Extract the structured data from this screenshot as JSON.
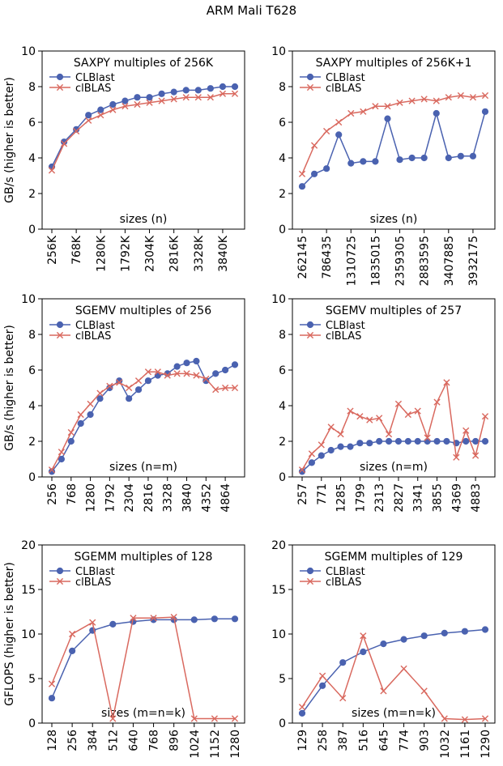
{
  "figure_title": "ARM Mali T628",
  "colors": {
    "clblast": "#4a62b0",
    "clblas": "#d9695f",
    "axis": "#000000"
  },
  "chart_data": [
    {
      "type": "line",
      "title": "SAXPY multiples of 256K",
      "xlabel": "sizes (n)",
      "ylabel": "GB/s (higher is better)",
      "ylim": [
        0,
        10
      ],
      "yticks": [
        "0",
        "2",
        "4",
        "6",
        "8",
        "10"
      ],
      "ytick_values": [
        0,
        2,
        4,
        6,
        8,
        10
      ],
      "xtick_labels": [
        "256K",
        "768K",
        "1280K",
        "1792K",
        "2304K",
        "2816K",
        "3328K",
        "3840K"
      ],
      "xtick_index": [
        0,
        2,
        4,
        6,
        8,
        10,
        12,
        14
      ],
      "legend": "upper-left",
      "series": [
        {
          "name": "CLBlast",
          "marker": "o",
          "values": [
            3.5,
            4.9,
            5.6,
            6.4,
            6.7,
            7.0,
            7.2,
            7.4,
            7.4,
            7.6,
            7.7,
            7.8,
            7.8,
            7.9,
            8.0,
            8.0
          ]
        },
        {
          "name": "clBLAS",
          "marker": "x",
          "values": [
            3.3,
            4.8,
            5.5,
            6.1,
            6.4,
            6.7,
            6.9,
            7.0,
            7.1,
            7.2,
            7.3,
            7.4,
            7.4,
            7.4,
            7.6,
            7.6
          ]
        }
      ]
    },
    {
      "type": "line",
      "title": "SAXPY multiples of 256K+1",
      "xlabel": "sizes (n)",
      "ylabel": "",
      "ylim": [
        0,
        10
      ],
      "yticks": [
        "0",
        "2",
        "4",
        "6",
        "8",
        "10"
      ],
      "ytick_values": [
        0,
        2,
        4,
        6,
        8,
        10
      ],
      "xtick_labels": [
        "262145",
        "786435",
        "1310725",
        "1835015",
        "2359305",
        "2883595",
        "3407885",
        "3932175"
      ],
      "xtick_index": [
        0,
        2,
        4,
        6,
        8,
        10,
        12,
        14
      ],
      "legend": "upper-left",
      "series": [
        {
          "name": "CLBlast",
          "marker": "o",
          "values": [
            2.4,
            3.1,
            3.4,
            5.3,
            3.7,
            3.8,
            3.8,
            6.2,
            3.9,
            4.0,
            4.0,
            6.5,
            4.0,
            4.1,
            4.1,
            6.6
          ]
        },
        {
          "name": "clBLAS",
          "marker": "x",
          "values": [
            3.1,
            4.7,
            5.5,
            6.0,
            6.5,
            6.6,
            6.9,
            6.9,
            7.1,
            7.2,
            7.3,
            7.2,
            7.4,
            7.5,
            7.4,
            7.5
          ]
        }
      ]
    },
    {
      "type": "line",
      "title": "SGEMV multiples of 256",
      "xlabel": "sizes (n=m)",
      "ylabel": "GB/s (higher is better)",
      "ylim": [
        0,
        10
      ],
      "yticks": [
        "0",
        "2",
        "4",
        "6",
        "8",
        "10"
      ],
      "ytick_values": [
        0,
        2,
        4,
        6,
        8,
        10
      ],
      "xtick_labels": [
        "256",
        "768",
        "1280",
        "1792",
        "2304",
        "2816",
        "3328",
        "3840",
        "4352",
        "4864"
      ],
      "xtick_index": [
        0,
        2,
        4,
        6,
        8,
        10,
        12,
        14,
        16,
        18
      ],
      "legend": "upper-left",
      "series": [
        {
          "name": "CLBlast",
          "marker": "o",
          "values": [
            0.3,
            1.0,
            2.0,
            3.0,
            3.5,
            4.4,
            5.0,
            5.4,
            4.4,
            4.9,
            5.4,
            5.7,
            5.8,
            6.2,
            6.4,
            6.5,
            5.4,
            5.8,
            6.0,
            6.3
          ]
        },
        {
          "name": "clBLAS",
          "marker": "x",
          "values": [
            0.4,
            1.4,
            2.5,
            3.5,
            4.1,
            4.7,
            5.1,
            5.3,
            5.0,
            5.4,
            5.9,
            5.9,
            5.7,
            5.8,
            5.8,
            5.7,
            5.5,
            4.9,
            5.0,
            5.0
          ]
        }
      ]
    },
    {
      "type": "line",
      "title": "SGEMV multiples of 257",
      "xlabel": "sizes (n=m)",
      "ylabel": "",
      "ylim": [
        0,
        10
      ],
      "yticks": [
        "0",
        "2",
        "4",
        "6",
        "8",
        "10"
      ],
      "ytick_values": [
        0,
        2,
        4,
        6,
        8,
        10
      ],
      "xtick_labels": [
        "257",
        "771",
        "1285",
        "1799",
        "2313",
        "2827",
        "3341",
        "3855",
        "4369",
        "4883"
      ],
      "xtick_index": [
        0,
        2,
        4,
        6,
        8,
        10,
        12,
        14,
        16,
        18
      ],
      "legend": "upper-left",
      "series": [
        {
          "name": "CLBlast",
          "marker": "o",
          "values": [
            0.3,
            0.8,
            1.2,
            1.5,
            1.7,
            1.7,
            1.9,
            1.9,
            2.0,
            2.0,
            2.0,
            2.0,
            2.0,
            2.0,
            2.0,
            2.0,
            1.9,
            2.0,
            2.0,
            2.0
          ]
        },
        {
          "name": "clBLAS",
          "marker": "x",
          "values": [
            0.4,
            1.3,
            1.8,
            2.8,
            2.4,
            3.7,
            3.4,
            3.2,
            3.3,
            2.4,
            4.1,
            3.5,
            3.7,
            2.2,
            4.2,
            5.3,
            1.1,
            2.6,
            1.2,
            3.4
          ]
        }
      ]
    },
    {
      "type": "line",
      "title": "SGEMM multiples of 128",
      "xlabel": "sizes (m=n=k)",
      "ylabel": "GFLOPS (higher is better)",
      "ylim": [
        0,
        20
      ],
      "yticks": [
        "0",
        "5",
        "10",
        "15",
        "20"
      ],
      "ytick_values": [
        0,
        5,
        10,
        15,
        20
      ],
      "xtick_labels": [
        "128",
        "256",
        "384",
        "512",
        "640",
        "768",
        "896",
        "1024",
        "1152",
        "1280"
      ],
      "xtick_index": [
        0,
        1,
        2,
        3,
        4,
        5,
        6,
        7,
        8,
        9
      ],
      "legend": "upper-left",
      "series": [
        {
          "name": "CLBlast",
          "marker": "o",
          "values": [
            2.8,
            8.1,
            10.4,
            11.1,
            11.4,
            11.6,
            11.6,
            11.6,
            11.7,
            11.7
          ]
        },
        {
          "name": "clBLAS",
          "marker": "x",
          "values": [
            4.4,
            10.0,
            11.3,
            0.5,
            11.8,
            11.8,
            11.9,
            0.5,
            0.5,
            0.5
          ]
        }
      ]
    },
    {
      "type": "line",
      "title": "SGEMM multiples of 129",
      "xlabel": "sizes (m=n=k)",
      "ylabel": "",
      "ylim": [
        0,
        20
      ],
      "yticks": [
        "0",
        "5",
        "10",
        "15",
        "20"
      ],
      "ytick_values": [
        0,
        5,
        10,
        15,
        20
      ],
      "xtick_labels": [
        "129",
        "258",
        "387",
        "516",
        "645",
        "774",
        "903",
        "1032",
        "1161",
        "1290"
      ],
      "xtick_index": [
        0,
        1,
        2,
        3,
        4,
        5,
        6,
        7,
        8,
        9
      ],
      "legend": "upper-left",
      "series": [
        {
          "name": "CLBlast",
          "marker": "o",
          "values": [
            1.1,
            4.2,
            6.8,
            8.0,
            8.9,
            9.4,
            9.8,
            10.1,
            10.3,
            10.5
          ]
        },
        {
          "name": "clBLAS",
          "marker": "x",
          "values": [
            1.8,
            5.3,
            2.8,
            9.8,
            3.6,
            6.1,
            3.6,
            0.5,
            0.4,
            0.5
          ]
        }
      ]
    }
  ]
}
